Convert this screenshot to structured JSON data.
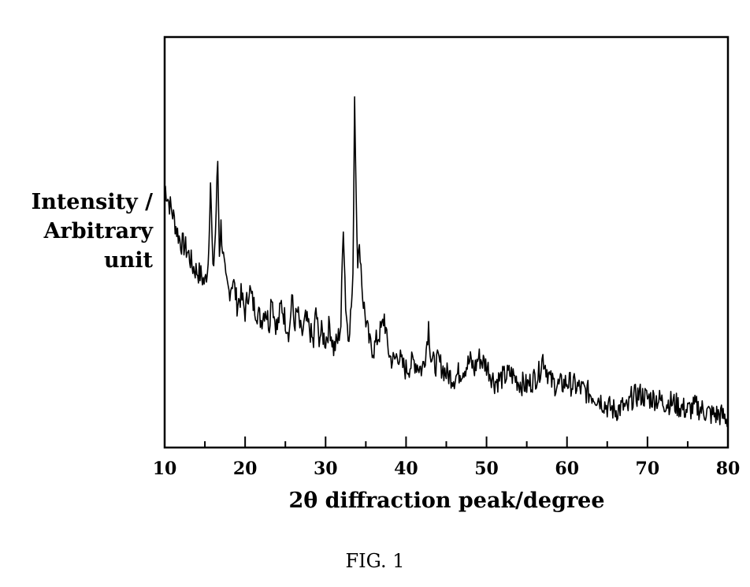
{
  "chart_data": {
    "type": "line",
    "title": "",
    "xlabel": "2θ diffraction peak/degree",
    "ylabel_lines": [
      "Intensity /",
      "Arbitrary",
      "unit"
    ],
    "xlim": [
      10,
      80
    ],
    "xticks": [
      10,
      20,
      30,
      40,
      50,
      60,
      70,
      80
    ],
    "y_tick_labels": false,
    "grid": false,
    "legend": "none",
    "line_color": "#000000",
    "y_units": "relative intensity (0-100, estimated)",
    "series": [
      {
        "x": [
          10,
          10.5,
          11,
          11.5,
          12,
          12.5,
          13,
          13.5,
          14,
          14.5,
          15,
          15.4,
          15.7,
          16.0,
          16.3,
          16.6,
          16.8,
          17.0,
          17.3,
          17.6,
          18,
          18.5,
          19,
          19.5,
          20,
          20.5,
          21,
          21.5,
          22,
          22.5,
          23,
          23.3,
          23.6,
          24,
          24.5,
          25,
          25.5,
          25.8,
          26.1,
          26.5,
          27,
          27.5,
          28,
          28.5,
          28.8,
          29.1,
          29.5,
          30,
          30.5,
          31,
          31.5,
          31.9,
          32.2,
          32.5,
          32.8,
          33.1,
          33.4,
          33.6,
          33.8,
          34.0,
          34.3,
          34.6,
          35,
          35.5,
          36,
          36.5,
          37,
          37.3,
          37.6,
          38,
          38.5,
          39,
          39.5,
          40,
          41,
          42,
          42.5,
          42.8,
          43.1,
          43.5,
          44,
          45,
          46,
          47,
          48,
          48.5,
          49,
          50,
          51,
          52,
          53,
          54,
          55,
          56,
          56.5,
          57,
          57.5,
          58,
          59,
          60,
          61,
          62,
          63,
          64,
          65,
          66,
          67,
          67.5,
          68,
          69,
          70,
          71,
          72,
          73,
          74,
          75,
          76,
          77,
          78,
          79,
          80
        ],
        "y": [
          64,
          60,
          57,
          53,
          50,
          49,
          47,
          44,
          43,
          42,
          40,
          45,
          65,
          42,
          52,
          70,
          48,
          54,
          46,
          40,
          38,
          41,
          35,
          37,
          33,
          39,
          35,
          33,
          31,
          34,
          30,
          38,
          32,
          29,
          35,
          31,
          28,
          37,
          30,
          33,
          27,
          31,
          29,
          25,
          34,
          27,
          28,
          26,
          30,
          24,
          26,
          30,
          55,
          35,
          27,
          32,
          40,
          86,
          62,
          46,
          48,
          37,
          31,
          25,
          24,
          27,
          29,
          32,
          26,
          22,
          21,
          23,
          20,
          19,
          21,
          19,
          24,
          30,
          22,
          20,
          21,
          18,
          17,
          19,
          21,
          19,
          22,
          20,
          16,
          17,
          18,
          16,
          15,
          17,
          18,
          22,
          19,
          16,
          15,
          16,
          15,
          14,
          13,
          12,
          10,
          9,
          10,
          9,
          12,
          13,
          12,
          12,
          11,
          11,
          10,
          9,
          10,
          9,
          8,
          8,
          7
        ]
      }
    ]
  },
  "caption": "FIG. 1"
}
